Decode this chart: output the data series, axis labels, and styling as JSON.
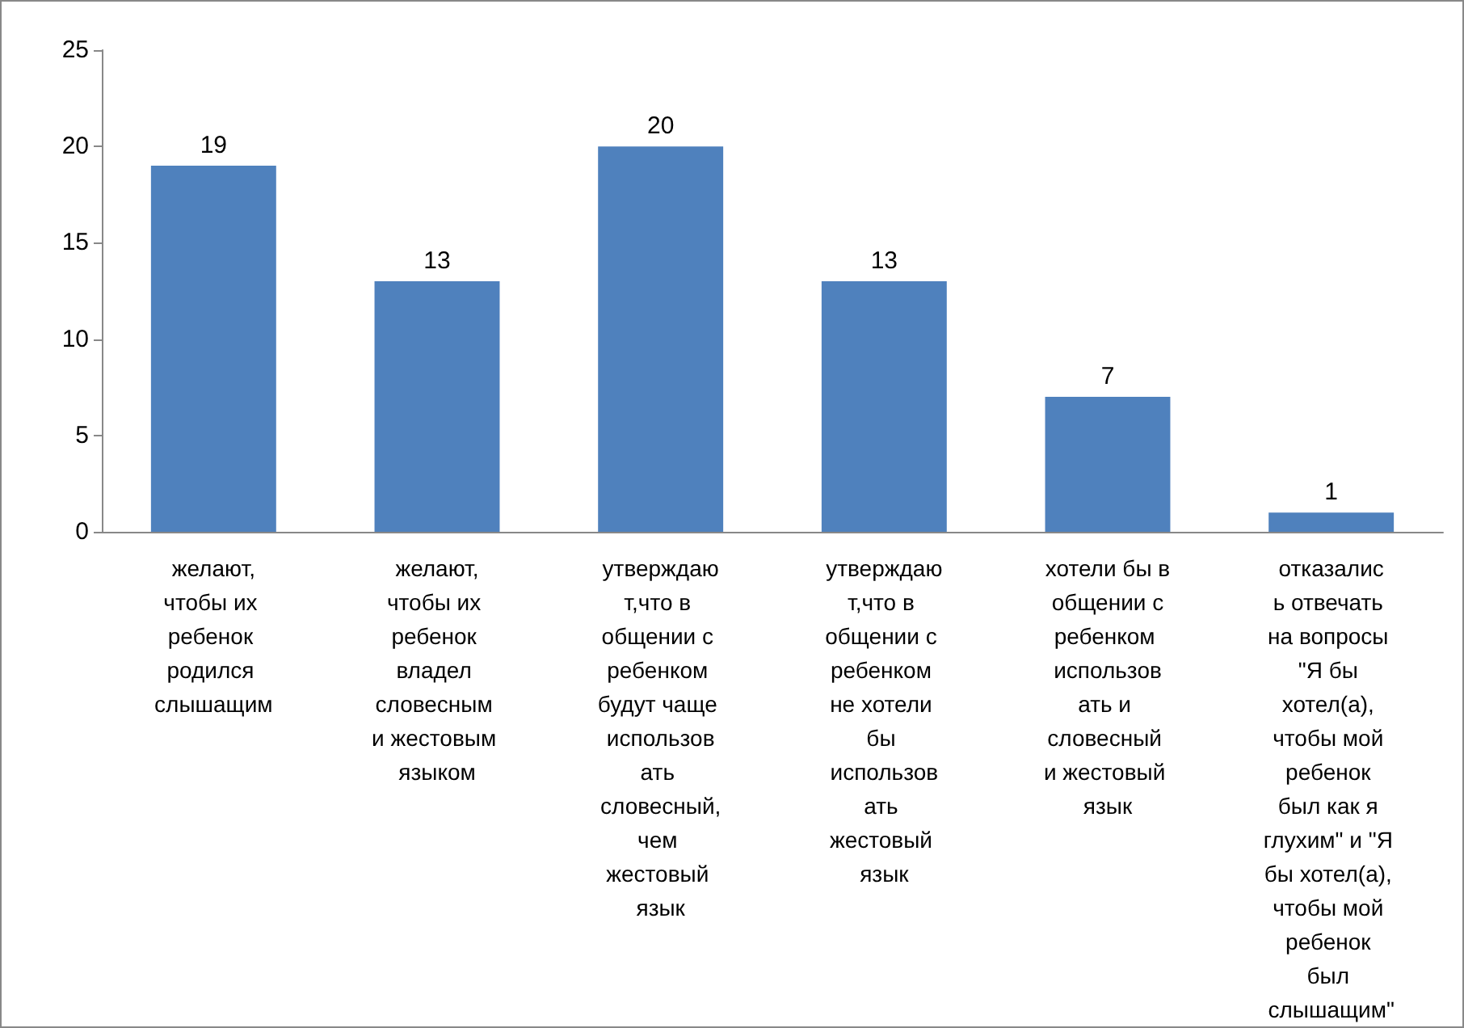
{
  "chart_data": {
    "type": "bar",
    "categories": [
      "желают,чтобы их ребенок родился слышащим",
      "желают,чтобы их ребенок владел словесным и жестовым языком",
      "утверждают,что в общении с ребенком будут чаще использовать словесный,чем жестовый язык",
      "утверждают,что в общении с ребенком не хотели бы использовать жестовый язык",
      "хотели бы в общении с ребенком использовать и словесный и жестовый язык",
      "отказались отвечать на вопросы \"Я бы хотел(а), чтобы мой ребенок был как я глухим\" и \"Я бы хотел(а), чтобы мой ребенок был слышащим\""
    ],
    "values": [
      19,
      13,
      20,
      13,
      7,
      1
    ],
    "color": "#4f81bd",
    "ylim": [
      0,
      25
    ],
    "yticks": [
      0,
      5,
      10,
      15,
      20,
      25
    ],
    "grid": false,
    "data_labels": true
  }
}
